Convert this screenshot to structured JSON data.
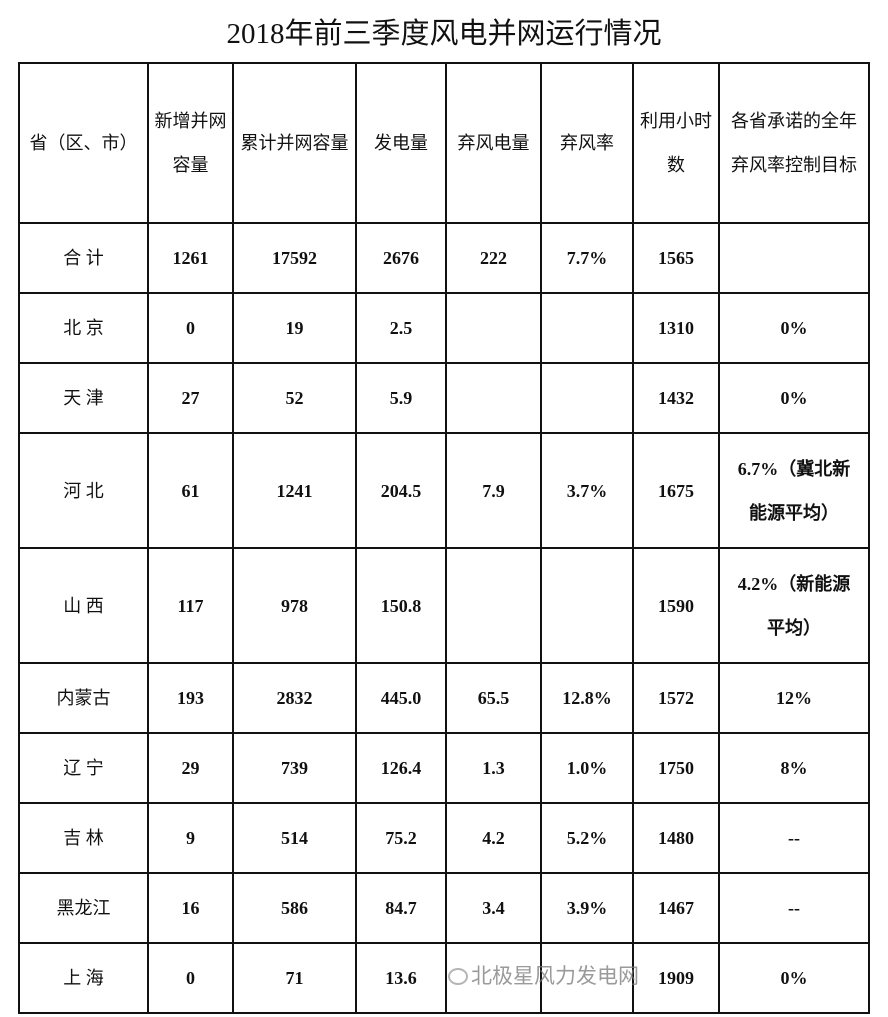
{
  "title": "2018年前三季度风电并网运行情况",
  "headers": [
    "省（区、市）",
    "新增并网容量",
    "累计并网容量",
    "发电量",
    "弃风电量",
    "弃风率",
    "利用小时数",
    "各省承诺的全年弃风率控制目标"
  ],
  "rows": [
    {
      "province": "合 计",
      "new_cap": "1261",
      "total_cap": "17592",
      "generation": "2676",
      "curtailed": "222",
      "rate": "7.7%",
      "hours": "1565",
      "target": ""
    },
    {
      "province": "北 京",
      "new_cap": "0",
      "total_cap": "19",
      "generation": "2.5",
      "curtailed": "",
      "rate": "",
      "hours": "1310",
      "target": "0%"
    },
    {
      "province": "天 津",
      "new_cap": "27",
      "total_cap": "52",
      "generation": "5.9",
      "curtailed": "",
      "rate": "",
      "hours": "1432",
      "target": "0%"
    },
    {
      "province": "河 北",
      "new_cap": "61",
      "total_cap": "1241",
      "generation": "204.5",
      "curtailed": "7.9",
      "rate": "3.7%",
      "hours": "1675",
      "target": "6.7%（冀北新能源平均）"
    },
    {
      "province": "山 西",
      "new_cap": "117",
      "total_cap": "978",
      "generation": "150.8",
      "curtailed": "",
      "rate": "",
      "hours": "1590",
      "target": "4.2%（新能源平均）"
    },
    {
      "province": "内蒙古",
      "new_cap": "193",
      "total_cap": "2832",
      "generation": "445.0",
      "curtailed": "65.5",
      "rate": "12.8%",
      "hours": "1572",
      "target": "12%"
    },
    {
      "province": "辽 宁",
      "new_cap": "29",
      "total_cap": "739",
      "generation": "126.4",
      "curtailed": "1.3",
      "rate": "1.0%",
      "hours": "1750",
      "target": "8%"
    },
    {
      "province": "吉 林",
      "new_cap": "9",
      "total_cap": "514",
      "generation": "75.2",
      "curtailed": "4.2",
      "rate": "5.2%",
      "hours": "1480",
      "target": "--"
    },
    {
      "province": "黑龙江",
      "new_cap": "16",
      "total_cap": "586",
      "generation": "84.7",
      "curtailed": "3.4",
      "rate": "3.9%",
      "hours": "1467",
      "target": "--"
    },
    {
      "province": "上 海",
      "new_cap": "0",
      "total_cap": "71",
      "generation": "13.6",
      "curtailed": "",
      "rate": "",
      "hours": "1909",
      "target": "0%"
    }
  ],
  "watermark": "北极星风力发电网"
}
